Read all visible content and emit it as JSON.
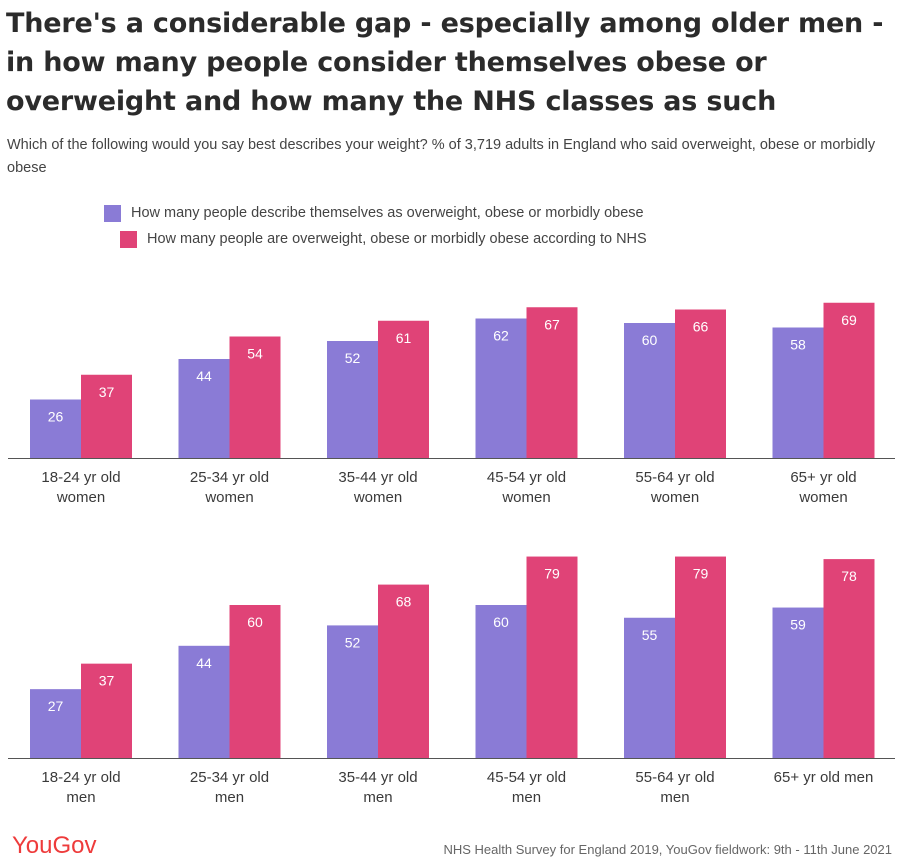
{
  "title": "There's a considerable gap - especially among older men - in how many people consider themselves obese or overweight and how many the NHS classes as such",
  "subtitle": "Which of the following would you say best describes your weight? % of 3,719 adults in England who said overweight, obese or morbidly obese",
  "legend": [
    {
      "label": "How many people describe themselves as overweight, obese or morbidly obese",
      "color": "#8a7bd6"
    },
    {
      "label": "How many people are overweight, obese or morbidly obese according to NHS",
      "color": "#e04377"
    }
  ],
  "chart_data": [
    {
      "type": "bar",
      "categories": [
        [
          "18-24 yr old",
          "women"
        ],
        [
          "25-34 yr old",
          "women"
        ],
        [
          "35-44 yr old",
          "women"
        ],
        [
          "45-54 yr old",
          "women"
        ],
        [
          "55-64 yr old",
          "women"
        ],
        [
          "65+ yr old",
          "women"
        ]
      ],
      "series": [
        {
          "name": "How many people describe themselves as overweight, obese or morbidly obese",
          "values": [
            26,
            44,
            52,
            62,
            60,
            58
          ]
        },
        {
          "name": "How many people are overweight, obese or morbidly obese according to NHS",
          "values": [
            37,
            54,
            61,
            67,
            66,
            69
          ]
        }
      ]
    },
    {
      "type": "bar",
      "categories": [
        [
          "18-24 yr old",
          "men"
        ],
        [
          "25-34 yr old",
          "men"
        ],
        [
          "35-44 yr old",
          "men"
        ],
        [
          "45-54 yr old",
          "men"
        ],
        [
          "55-64 yr old",
          "men"
        ],
        [
          "65+ yr old men"
        ]
      ],
      "series": [
        {
          "name": "How many people describe themselves as overweight, obese or morbidly obese",
          "values": [
            27,
            44,
            52,
            60,
            55,
            59
          ]
        },
        {
          "name": "How many people are overweight, obese or morbidly obese according to NHS",
          "values": [
            37,
            60,
            68,
            79,
            79,
            78
          ]
        }
      ]
    }
  ],
  "footer": {
    "logo": "YouGov",
    "source": "NHS Health Survey for England 2019, YouGov fieldwork: 9th - 11th June 2021"
  }
}
